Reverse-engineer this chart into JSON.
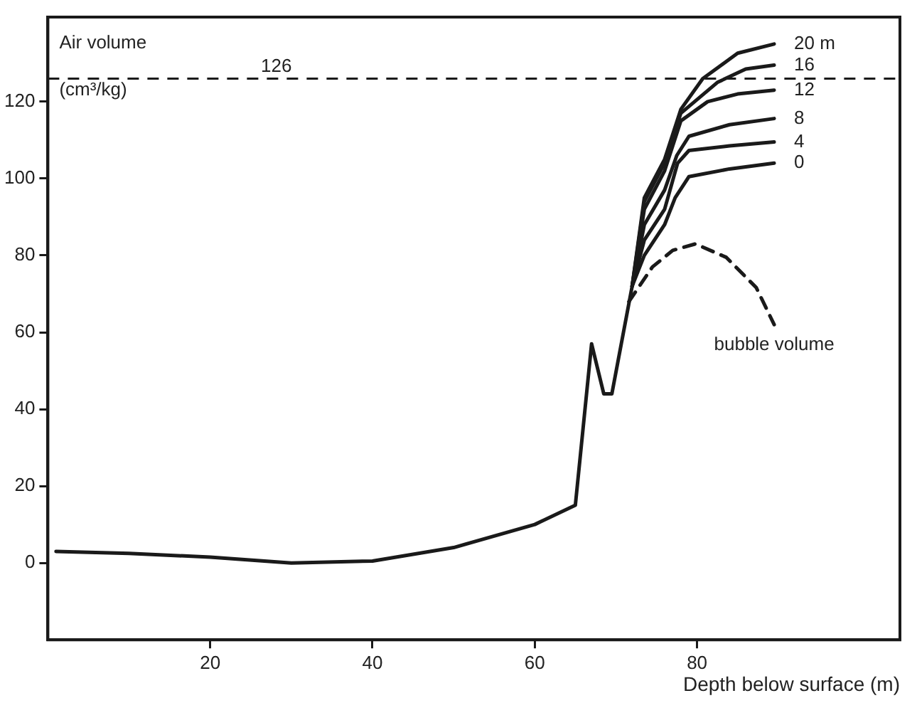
{
  "chart_data": {
    "type": "line",
    "xlabel": "Depth below surface (m)",
    "ylabel": "Air volume (cm³/kg)",
    "xlim": [
      0,
      105
    ],
    "xticks": [
      20,
      40,
      60,
      80
    ],
    "ylim": [
      -20,
      142
    ],
    "yticks": [
      0,
      20,
      40,
      60,
      80,
      100,
      120
    ],
    "grid": false,
    "legend": false,
    "marker": "none",
    "ref_lines": [
      {
        "axis": "y",
        "value": 126,
        "label": "126",
        "line_style": "dashed"
      }
    ],
    "series": [
      {
        "name": "20 m",
        "color": "#1a1a1a",
        "x": [
          1,
          10,
          20,
          30,
          40,
          50,
          60,
          65,
          67,
          68.5,
          69.5,
          72,
          73.5,
          76,
          78,
          80.7,
          85,
          89.5
        ],
        "values": [
          3,
          2.5,
          1.5,
          0,
          0.5,
          4,
          10,
          15,
          57,
          44,
          44,
          72,
          95,
          105,
          118,
          126,
          132.6,
          135
        ]
      },
      {
        "name": "16",
        "color": "#1a1a1a",
        "x": [
          72,
          73.5,
          76,
          78,
          82.5,
          86,
          89.5
        ],
        "values": [
          72,
          94,
          104,
          117,
          125,
          128.5,
          129.5
        ]
      },
      {
        "name": "12",
        "color": "#1a1a1a",
        "x": [
          72,
          73.5,
          76,
          78,
          81.3,
          85,
          89.5
        ],
        "values": [
          72,
          92,
          102,
          115,
          120,
          122,
          123
        ]
      },
      {
        "name": "8",
        "color": "#1a1a1a",
        "x": [
          72,
          73.5,
          76,
          77.5,
          79,
          84,
          89.5
        ],
        "values": [
          72,
          88,
          97,
          106,
          111,
          114,
          115.6
        ]
      },
      {
        "name": "4",
        "color": "#1a1a1a",
        "x": [
          72,
          73.5,
          76,
          77.6,
          79,
          84,
          89.5
        ],
        "values": [
          72,
          84,
          92,
          104,
          107.3,
          108.5,
          109.5
        ]
      },
      {
        "name": "0",
        "color": "#1a1a1a",
        "x": [
          72,
          73.5,
          76,
          77.3,
          79,
          84,
          89.5
        ],
        "values": [
          72,
          80,
          88,
          95,
          100.5,
          102.5,
          104
        ]
      },
      {
        "name": "bubble volume",
        "color": "#1a1a1a",
        "line_style": "dashed",
        "x": [
          71.6,
          74.5,
          77,
          79.8,
          83.6,
          87.3,
          89.5
        ],
        "values": [
          68,
          77,
          81.3,
          83,
          79.5,
          71.6,
          62
        ]
      }
    ]
  }
}
